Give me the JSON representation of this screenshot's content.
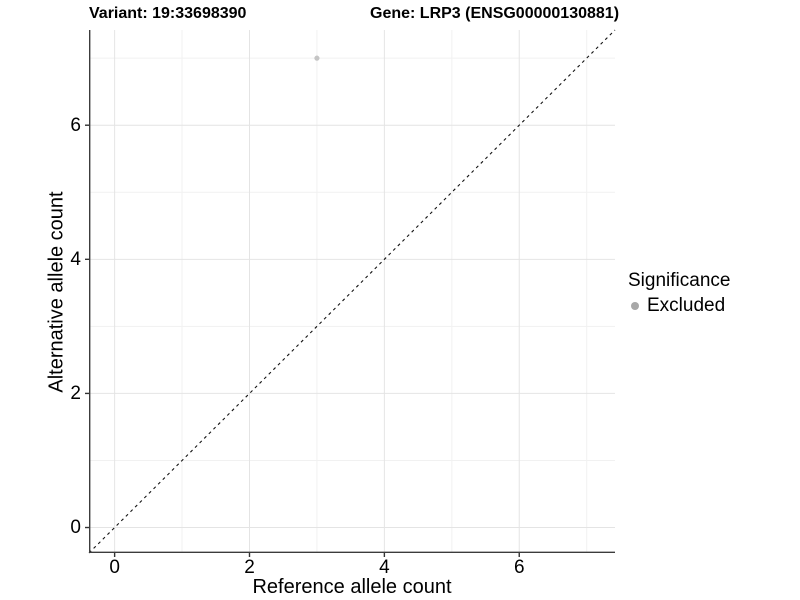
{
  "titles": {
    "variant": "Variant: 19:33698390",
    "gene": "Gene: LRP3 (ENSG00000130881)"
  },
  "axes": {
    "x_label": "Reference allele count",
    "y_label": "Alternative allele count"
  },
  "legend": {
    "title": "Significance",
    "items": [
      {
        "label": "Excluded",
        "marker": "circle-icon",
        "color": "#a8a8a8"
      }
    ]
  },
  "colors": {
    "background": "#ffffff",
    "grid_major": "#e4e4e4",
    "grid_minor": "#f1f1f1",
    "axis_line": "#3c3c3c",
    "tick_mark": "#333333",
    "text": "#000000",
    "reference_line": "#141414",
    "point_excluded": "#c5c5c5"
  },
  "chart_data": {
    "type": "scatter",
    "title": "Variant: 19:33698390  |  Gene: LRP3 (ENSG00000130881)",
    "xlabel": "Reference allele count",
    "ylabel": "Alternative allele count",
    "xlim": [
      -0.38,
      7.42
    ],
    "ylim": [
      -0.38,
      7.42
    ],
    "x_ticks": [
      0,
      2,
      4,
      6
    ],
    "y_ticks": [
      0,
      2,
      4,
      6
    ],
    "x_minor_ticks": [
      1,
      3,
      5,
      7
    ],
    "y_minor_ticks": [
      1,
      3,
      5,
      7
    ],
    "grid": true,
    "legend_position": "right",
    "series": [
      {
        "name": "Excluded",
        "color": "#c5c5c5",
        "points": [
          {
            "x": 3,
            "y": 7
          }
        ]
      }
    ],
    "reference_line": {
      "type": "identity",
      "slope": 1,
      "intercept": 0,
      "style": "dashed"
    }
  }
}
